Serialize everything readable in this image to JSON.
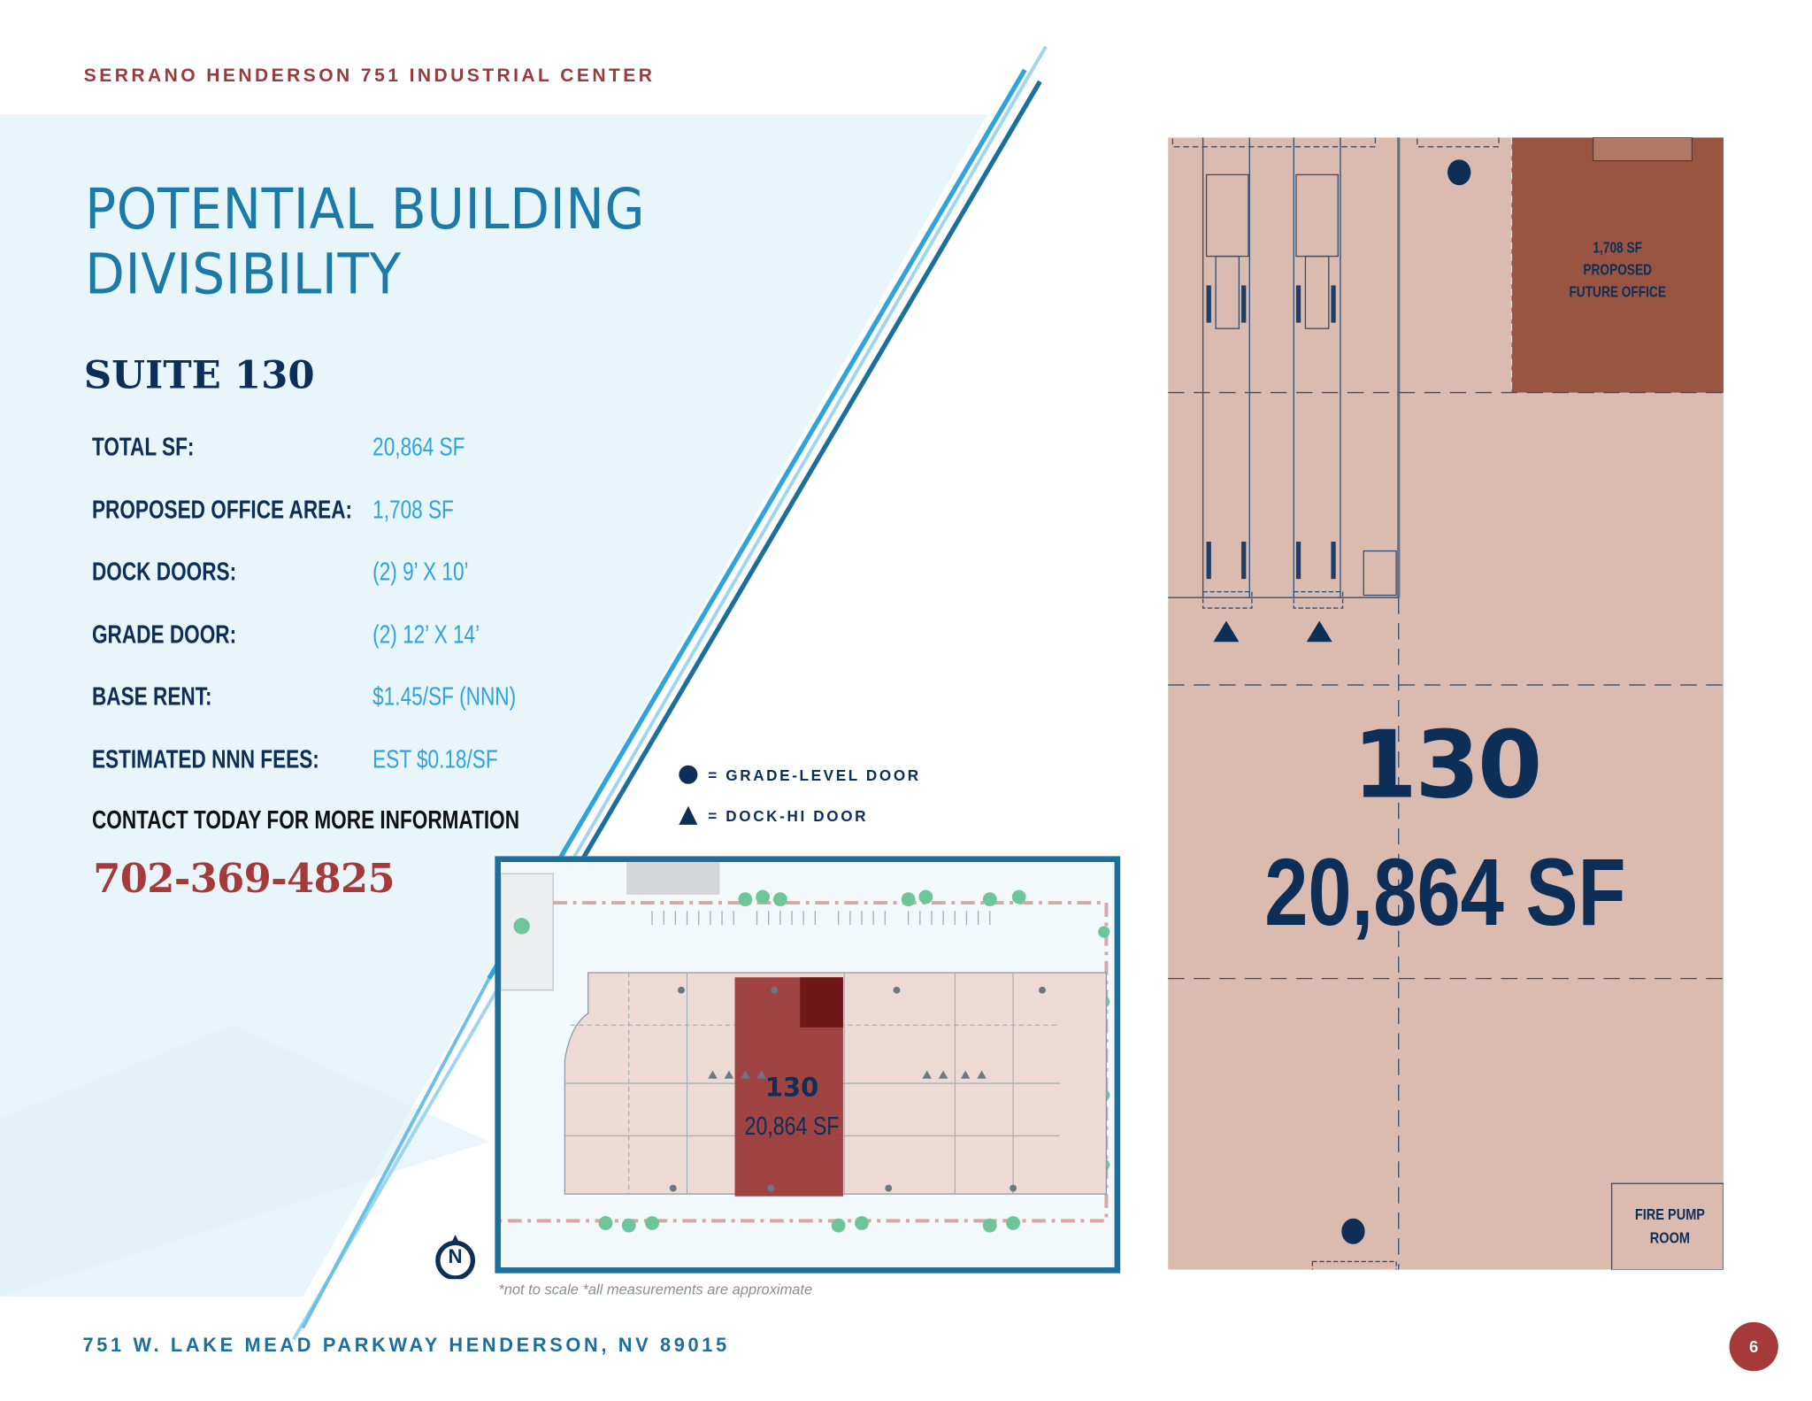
{
  "header": {
    "property_name": "SERRANO HENDERSON 751 INDUSTRIAL CENTER"
  },
  "title": {
    "line1": "POTENTIAL BUILDING",
    "line2": "DIVISIBILITY"
  },
  "suite": {
    "name": "SUITE 130",
    "specs": [
      {
        "label": "TOTAL SF:",
        "value": "20,864 SF"
      },
      {
        "label": "PROPOSED OFFICE AREA:",
        "value": "1,708 SF"
      },
      {
        "label": "DOCK DOORS:",
        "value": "(2) 9’ X 10’"
      },
      {
        "label": "GRADE DOOR:",
        "value": "(2) 12’ X 14’"
      },
      {
        "label": "BASE RENT:",
        "value": "$1.45/SF (NNN)"
      },
      {
        "label": "ESTIMATED NNN FEES:",
        "value": "EST $0.18/SF"
      }
    ],
    "contact_label": "CONTACT TODAY FOR MORE INFORMATION",
    "phone": "702-369-4825"
  },
  "legend": {
    "grade_level": {
      "icon": "filled-circle-icon",
      "label": "= GRADE-LEVEL DOOR"
    },
    "dock_hi": {
      "icon": "filled-triangle-icon",
      "label": "= DOCK-HI DOOR"
    }
  },
  "site_plan": {
    "suite_number": "130",
    "suite_area": "20,864 SF",
    "compass_letter": "N",
    "note": "*not to scale *all measurements are approximate"
  },
  "floor_plan": {
    "office_area": "1,708 SF",
    "office_line2": "PROPOSED",
    "office_line3": "FUTURE OFFICE",
    "suite_number": "130",
    "suite_area": "20,864 SF",
    "fire_pump_line1": "FIRE PUMP",
    "fire_pump_line2": "ROOM"
  },
  "footer": {
    "address": "751 W. LAKE MEAD PARKWAY HENDERSON, NV 89015",
    "page_number": "6"
  },
  "colors": {
    "brand_red": "#a43a3a",
    "navy": "#0d2e57",
    "accent_blue": "#2ea3dc",
    "title_blue": "#1b7aa8",
    "panel_bg": "#e8f5fb",
    "suite_fill": "#dbbab0",
    "office_fill": "#9a5442",
    "site_highlight": "#9c3b3b"
  }
}
